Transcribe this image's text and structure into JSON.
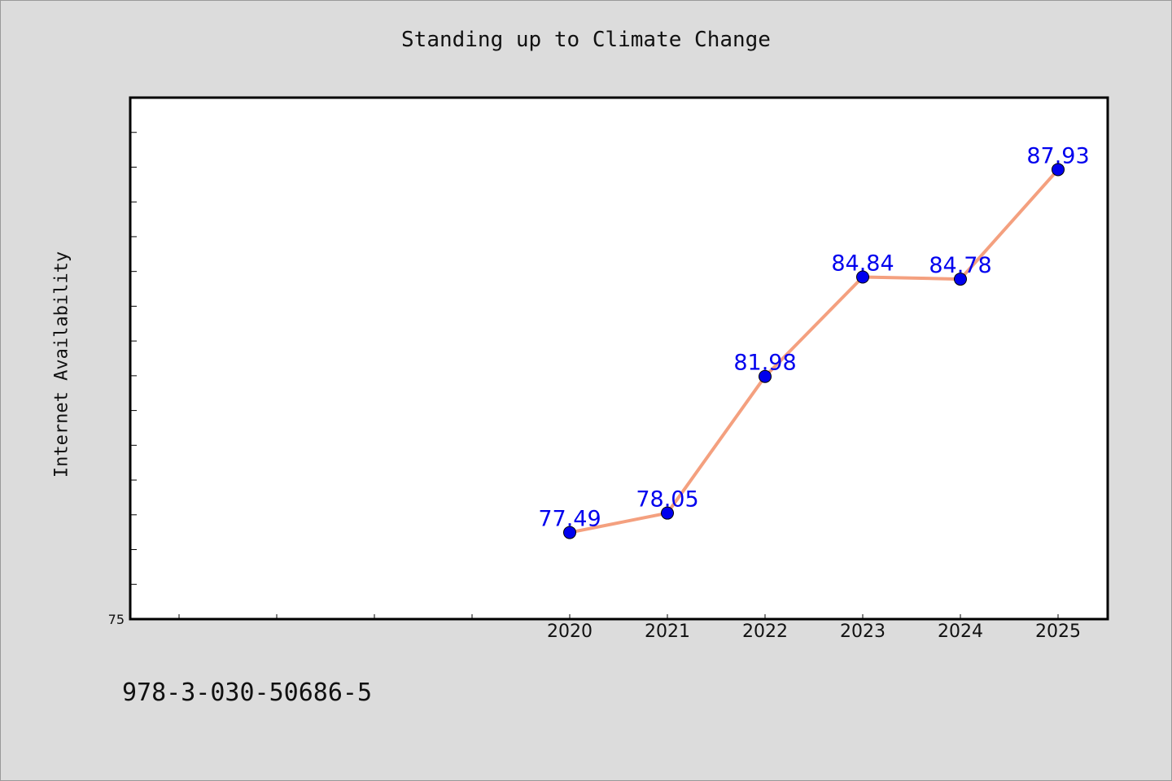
{
  "chart_data": {
    "type": "line",
    "title": "Standing up to Climate Change",
    "xlabel": "",
    "ylabel": "Internet Availability",
    "categories": [
      "2020",
      "2021",
      "2022",
      "2023",
      "2024",
      "2025"
    ],
    "series": [
      {
        "values": [
          77.49,
          78.05,
          81.98,
          84.84,
          84.78,
          87.93
        ],
        "data_labels": [
          "77.49",
          "78.05",
          "81.98",
          "84.84",
          "84.78",
          "87.93"
        ]
      }
    ],
    "ylim": [
      75,
      90
    ],
    "y_tick_labels": [
      "75"
    ],
    "grid": false,
    "line_color": "#f4a07f",
    "marker_color": "#0000ee",
    "label_color": "#0000ee"
  },
  "footer": {
    "code": "978-3-030-50686-5"
  }
}
